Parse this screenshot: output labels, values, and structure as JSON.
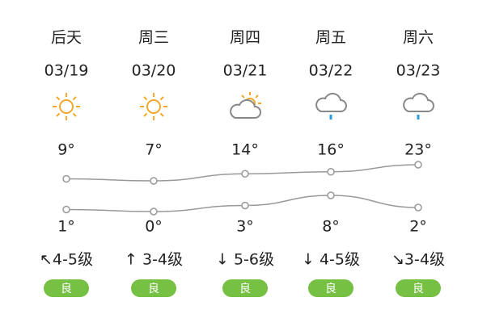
{
  "days": [
    {
      "day": "后天",
      "date": "03/19",
      "high": 9,
      "high_label": "9°",
      "low": 1,
      "low_label": "1°",
      "wind": "↖4-5级",
      "aqi": "良"
    },
    {
      "day": "周三",
      "date": "03/20",
      "high": 7,
      "high_label": "7°",
      "low": 0,
      "low_label": "0°",
      "wind": "↑ 3-4级",
      "aqi": "良"
    },
    {
      "day": "周四",
      "date": "03/21",
      "high": 14,
      "high_label": "14°",
      "low": 3,
      "low_label": "3°",
      "wind": "↓ 5-6级",
      "aqi": "良"
    },
    {
      "day": "周五",
      "date": "03/22",
      "high": 16,
      "high_label": "16°",
      "low": 8,
      "low_label": "8°",
      "wind": "↓ 4-5级",
      "aqi": "良"
    },
    {
      "day": "周六",
      "date": "03/23",
      "high": 23,
      "high_label": "23°",
      "low": 2,
      "low_label": "2°",
      "wind": "↘3-4级",
      "aqi": "良"
    }
  ]
}
